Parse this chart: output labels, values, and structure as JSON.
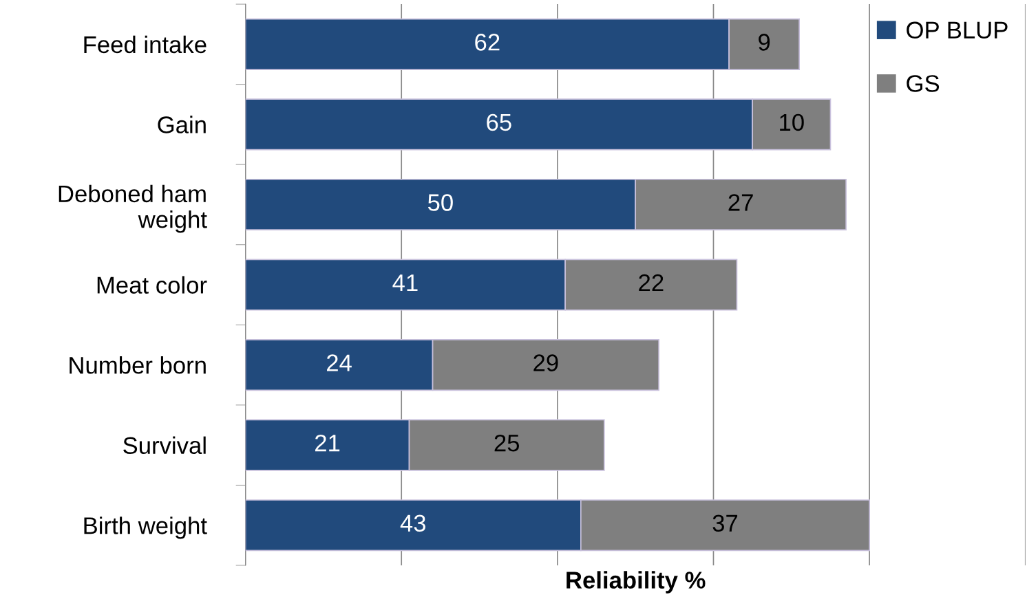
{
  "chart_data": {
    "type": "bar",
    "orientation": "horizontal",
    "stacked": true,
    "categories": [
      "Feed intake",
      "Gain",
      "Deboned ham\nweight",
      "Meat color",
      "Number born",
      "Survival",
      "Birth weight"
    ],
    "series": [
      {
        "name": "OP BLUP",
        "color": "#214a7c",
        "values": [
          62,
          65,
          50,
          41,
          24,
          21,
          43
        ]
      },
      {
        "name": "GS",
        "color": "#7f7f7f",
        "values": [
          9,
          10,
          27,
          22,
          29,
          25,
          37
        ]
      }
    ],
    "xlabel": "Reliability %",
    "xlim": [
      0,
      100
    ],
    "xticks": [
      {
        "value": 0,
        "label": null
      },
      {
        "value": 20,
        "label": null
      },
      {
        "value": 40,
        "label": null
      },
      {
        "value": 60,
        "label": null
      },
      {
        "value": 80,
        "label": null
      },
      {
        "value": 100,
        "label": null
      }
    ],
    "tick_labels": "y",
    "grid": "x",
    "legend": "top right",
    "data_labels": true
  }
}
